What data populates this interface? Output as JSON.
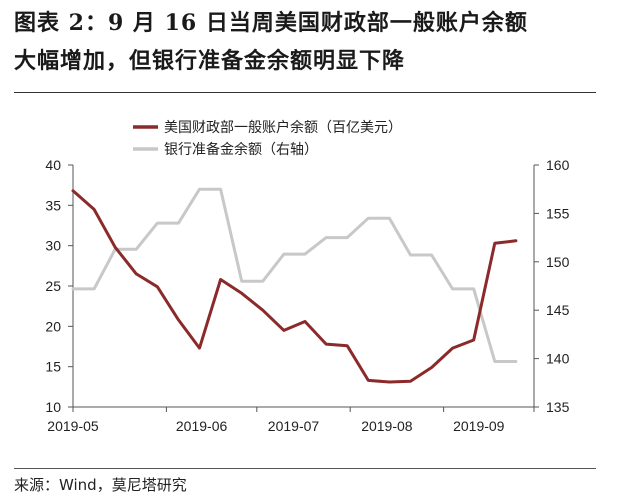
{
  "header": {
    "title_line1": "图表 2：9 月 16 日当周美国财政部一般账户余额",
    "title_line2": "大幅增加，但银行准备金余额明显下降"
  },
  "footer": {
    "source": "来源：Wind，莫尼塔研究"
  },
  "chart_data": {
    "type": "line",
    "x": [
      "2019-05-01",
      "2019-05-08",
      "2019-05-15",
      "2019-05-22",
      "2019-05-29",
      "2019-06-05",
      "2019-06-12",
      "2019-06-19",
      "2019-06-26",
      "2019-07-03",
      "2019-07-10",
      "2019-07-17",
      "2019-07-24",
      "2019-07-31",
      "2019-08-07",
      "2019-08-14",
      "2019-08-21",
      "2019-08-28",
      "2019-09-04",
      "2019-09-11",
      "2019-09-18",
      "2019-09-25"
    ],
    "xticks": [
      "2019-05",
      "2019-06",
      "2019-07",
      "2019-08",
      "2019-09"
    ],
    "series": [
      {
        "name": "美国财政部一般账户余额（百亿美元）",
        "axis": "left",
        "color": "#8B2A2A",
        "values": [
          36.8,
          34.5,
          29.8,
          26.5,
          24.9,
          20.8,
          17.3,
          25.8,
          24.1,
          22.0,
          19.5,
          20.6,
          17.8,
          17.6,
          13.3,
          13.1,
          13.2,
          14.9,
          17.3,
          18.3,
          30.3,
          30.6
        ]
      },
      {
        "name": "银行准备金余额（右轴）",
        "axis": "right",
        "color": "#C8C8C8",
        "values": [
          147.2,
          147.2,
          151.3,
          151.3,
          154.0,
          154.0,
          157.5,
          157.5,
          148.0,
          148.0,
          150.8,
          150.8,
          152.5,
          152.5,
          154.5,
          154.5,
          150.7,
          150.7,
          147.2,
          147.2,
          139.7,
          139.7
        ]
      }
    ],
    "y_left": {
      "ylim": [
        10,
        40
      ],
      "ticks": [
        "10",
        "15",
        "20",
        "25",
        "30",
        "35",
        "40"
      ]
    },
    "y_right": {
      "ylim": [
        135,
        160
      ],
      "ticks": [
        "135",
        "140",
        "145",
        "150",
        "155",
        "160"
      ]
    },
    "legend_position": "top",
    "grid": false
  }
}
